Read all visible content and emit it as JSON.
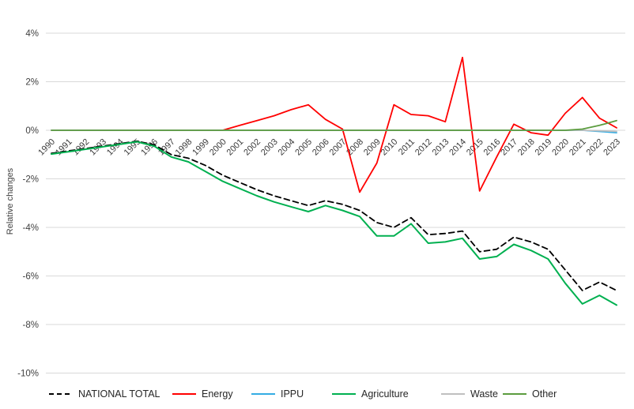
{
  "chart_data": {
    "type": "line",
    "title": "",
    "ylabel": "Relative changes",
    "xlabel": "",
    "ylim": [
      -10,
      4
    ],
    "ytick_values": [
      4,
      2,
      0,
      -2,
      -4,
      -6,
      -8,
      -10
    ],
    "ytick_labels": [
      "4%",
      "2%",
      "0%",
      "-2%",
      "-4%",
      "-6%",
      "-8%",
      "-10%"
    ],
    "grid": "horizontal-light-gray",
    "legend_position": "bottom",
    "x": [
      "1990",
      "1991",
      "1992",
      "1993",
      "1994",
      "1995",
      "1996",
      "1997",
      "1998",
      "1999",
      "2000",
      "2001",
      "2002",
      "2003",
      "2004",
      "2005",
      "2006",
      "2007",
      "2008",
      "2009",
      "2010",
      "2011",
      "2012",
      "2013",
      "2014",
      "2015",
      "2016",
      "2017",
      "2018",
      "2019",
      "2020",
      "2021",
      "2022",
      "2023"
    ],
    "unit": "percent",
    "series": [
      {
        "name": "NATIONAL TOTAL",
        "color": "#000000",
        "style": "dashed",
        "values": [
          -0.95,
          -0.85,
          -0.75,
          -0.65,
          -0.55,
          -0.45,
          -0.6,
          -1.0,
          -1.15,
          -1.45,
          -1.85,
          -2.15,
          -2.45,
          -2.7,
          -2.9,
          -3.1,
          -2.9,
          -3.05,
          -3.3,
          -3.8,
          -4.0,
          -3.6,
          -4.3,
          -4.25,
          -4.15,
          -5.0,
          -4.9,
          -4.4,
          -4.6,
          -4.9,
          -5.75,
          -6.6,
          -6.25,
          -6.6
        ]
      },
      {
        "name": "Energy",
        "color": "#ff0000",
        "style": "solid",
        "values": [
          0,
          0,
          0,
          0,
          0,
          0,
          0,
          0,
          0,
          0,
          0,
          0.2,
          0.4,
          0.6,
          0.85,
          1.05,
          0.45,
          0.05,
          -2.55,
          -1.35,
          1.05,
          0.65,
          0.6,
          0.35,
          3.0,
          -2.5,
          -1.1,
          0.25,
          -0.1,
          -0.2,
          0.7,
          1.35,
          0.5,
          0.1
        ]
      },
      {
        "name": "IPPU",
        "color": "#33ace3",
        "style": "solid",
        "values": [
          0,
          0,
          0,
          0,
          0,
          0,
          0,
          0,
          0,
          0,
          0,
          0,
          0,
          0,
          0,
          0,
          0,
          0,
          0,
          0,
          0,
          0,
          0,
          0,
          0,
          0,
          0,
          0,
          0,
          0,
          0,
          0,
          -0.05,
          -0.1
        ]
      },
      {
        "name": "Agriculture",
        "color": "#00b050",
        "style": "solid",
        "values": [
          -0.98,
          -0.88,
          -0.78,
          -0.68,
          -0.58,
          -0.47,
          -0.65,
          -1.1,
          -1.3,
          -1.7,
          -2.1,
          -2.4,
          -2.7,
          -2.95,
          -3.15,
          -3.35,
          -3.1,
          -3.3,
          -3.55,
          -4.35,
          -4.35,
          -3.85,
          -4.65,
          -4.6,
          -4.45,
          -5.3,
          -5.2,
          -4.7,
          -4.95,
          -5.3,
          -6.3,
          -7.15,
          -6.8,
          -7.2
        ]
      },
      {
        "name": "Waste",
        "color": "#bfbfbf",
        "style": "solid",
        "values": [
          0,
          0,
          0,
          0,
          0,
          0,
          0,
          0,
          0,
          0,
          0,
          0,
          0,
          0,
          0,
          0,
          0,
          0,
          0,
          0,
          0,
          0,
          0,
          0,
          0,
          0,
          0,
          0,
          0,
          0,
          0,
          0,
          -0.02,
          -0.05
        ]
      },
      {
        "name": "Other",
        "color": "#5b9c3e",
        "style": "solid",
        "values": [
          0,
          0,
          0,
          0,
          0,
          0,
          0,
          0,
          0,
          0,
          0,
          0,
          0,
          0,
          0,
          0,
          0,
          0,
          0,
          0,
          0,
          0,
          0,
          0,
          0,
          0,
          0,
          0,
          0,
          0,
          0,
          0.05,
          0.2,
          0.4
        ]
      }
    ]
  },
  "legend": {
    "items": [
      "NATIONAL TOTAL",
      "Energy",
      "IPPU",
      "Agriculture",
      "Waste",
      "Other"
    ]
  },
  "colors": {
    "gridline": "#d9d9d9",
    "axis_text": "#404040",
    "legend_text": "#262626",
    "background": "#ffffff"
  }
}
